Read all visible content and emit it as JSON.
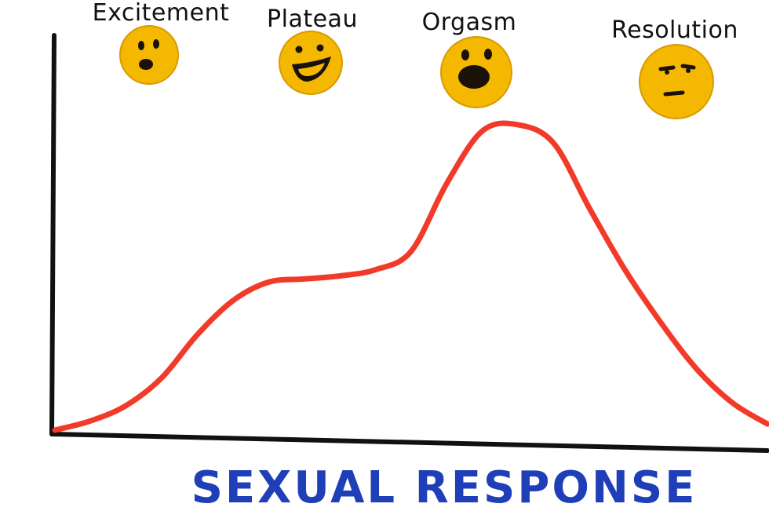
{
  "chart_data": {
    "type": "line",
    "title": "SEXUAL RESPONSE",
    "xlabel": "",
    "ylabel": "",
    "grid": false,
    "x": [
      0,
      5,
      10,
      15,
      20,
      25,
      30,
      35,
      40,
      45,
      50,
      55,
      60,
      65,
      70,
      75,
      80,
      85,
      90,
      95,
      100
    ],
    "series": [
      {
        "values": [
          0,
          3,
          8,
          17,
          31,
          42,
          48,
          49,
          50,
          52,
          58,
          80,
          97,
          99,
          93,
          72,
          52,
          35,
          20,
          9,
          2
        ]
      }
    ],
    "ylim": [
      0,
      100
    ],
    "xlim": [
      0,
      100
    ],
    "phases": [
      {
        "label": "Excitement",
        "face": "smile-face-icon"
      },
      {
        "label": "Plateau",
        "face": "grin-face-icon"
      },
      {
        "label": "Orgasm",
        "face": "shout-face-icon"
      },
      {
        "label": "Resolution",
        "face": "smirk-face-icon"
      }
    ]
  },
  "colors": {
    "curve": "#f23a2a",
    "title": "#1f3fb8",
    "face": "#f5b800"
  }
}
